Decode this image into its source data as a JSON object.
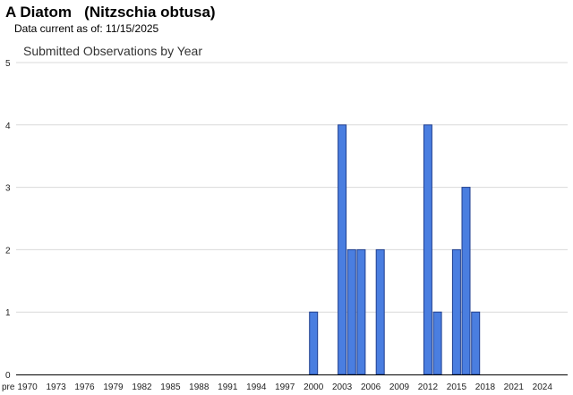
{
  "header": {
    "title": "A Diatom   (Nitzschia obtusa)",
    "data_current": "Data current as of: 11/15/2025"
  },
  "chart_data": {
    "type": "bar",
    "title": "Submitted Observations by Year",
    "xlabel": "",
    "ylabel": "",
    "ylim": [
      0,
      5
    ],
    "yticks": [
      0,
      1,
      2,
      3,
      4,
      5
    ],
    "categories": [
      "pre",
      "1970",
      "1971",
      "1972",
      "1973",
      "1974",
      "1975",
      "1976",
      "1977",
      "1978",
      "1979",
      "1980",
      "1981",
      "1982",
      "1983",
      "1984",
      "1985",
      "1986",
      "1987",
      "1988",
      "1989",
      "1990",
      "1991",
      "1992",
      "1993",
      "1994",
      "1995",
      "1996",
      "1997",
      "1998",
      "1999",
      "2000",
      "2001",
      "2002",
      "2003",
      "2004",
      "2005",
      "2006",
      "2007",
      "2008",
      "2009",
      "2010",
      "2011",
      "2012",
      "2013",
      "2014",
      "2015",
      "2016",
      "2017",
      "2018",
      "2019",
      "2020",
      "2021",
      "2022",
      "2023",
      "2024",
      "2025"
    ],
    "values": [
      0,
      0,
      0,
      0,
      0,
      0,
      0,
      0,
      0,
      0,
      0,
      0,
      0,
      0,
      0,
      0,
      0,
      0,
      0,
      0,
      0,
      0,
      0,
      0,
      0,
      0,
      0,
      0,
      0,
      0,
      0,
      1,
      0,
      0,
      4,
      2,
      2,
      0,
      2,
      0,
      0,
      0,
      0,
      4,
      1,
      0,
      2,
      3,
      1,
      0,
      0,
      0,
      0,
      0,
      0,
      0,
      0
    ],
    "x_tick_labels": [
      "pre",
      "1970",
      "1973",
      "1976",
      "1979",
      "1982",
      "1985",
      "1988",
      "1991",
      "1994",
      "1997",
      "2000",
      "2003",
      "2006",
      "2009",
      "2012",
      "2015",
      "2018",
      "2021",
      "2024"
    ],
    "grid": true,
    "colors": {
      "bar_fill": "#4a7ee0",
      "bar_stroke": "#1f3f8f",
      "grid": "#d9d9d9",
      "axis": "#000000"
    }
  }
}
